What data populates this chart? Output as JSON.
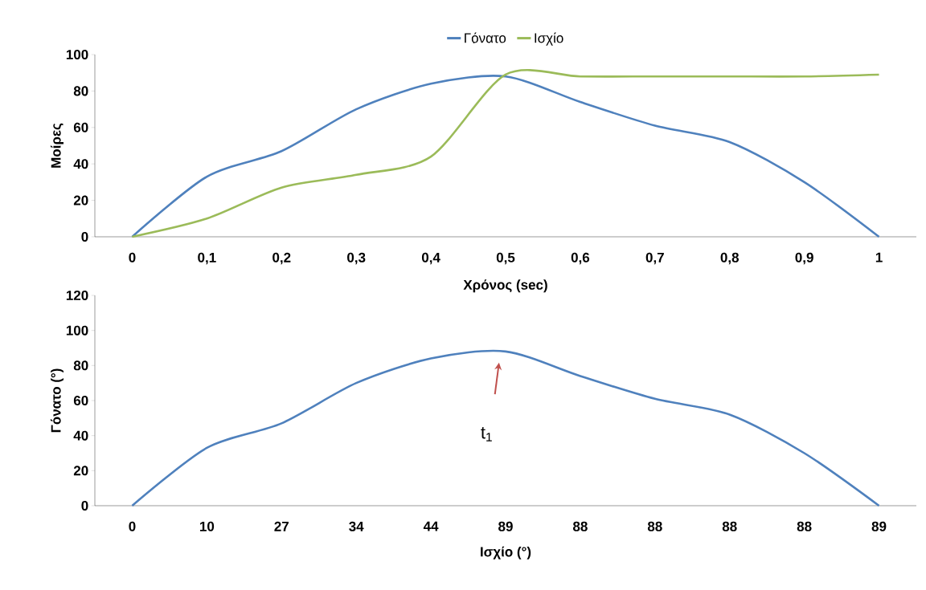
{
  "chart_data": [
    {
      "type": "line",
      "categories": [
        "0",
        "0,1",
        "0,2",
        "0,3",
        "0,4",
        "0,5",
        "0,6",
        "0,7",
        "0,8",
        "0,9",
        "1"
      ],
      "series": [
        {
          "name": "Γόνατο",
          "color": "#4f81bd",
          "values": [
            0,
            33,
            47,
            70,
            84,
            88,
            74,
            61,
            52,
            30,
            0
          ]
        },
        {
          "name": "Ισχίο",
          "color": "#9bbb59",
          "values": [
            0,
            10,
            27,
            34,
            44,
            89,
            88,
            88,
            88,
            88,
            89
          ]
        }
      ],
      "xlabel": "Χρόνος (sec)",
      "ylabel": "Μοίρες",
      "ylim": [
        0,
        100
      ],
      "yticks": [
        0,
        20,
        40,
        60,
        80,
        100
      ],
      "legend": "top"
    },
    {
      "type": "line",
      "categories": [
        "0",
        "10",
        "27",
        "34",
        "44",
        "89",
        "88",
        "88",
        "88",
        "88",
        "89"
      ],
      "series": [
        {
          "color": "#4f81bd",
          "values": [
            0,
            33,
            47,
            70,
            84,
            88,
            74,
            61,
            52,
            30,
            0
          ]
        }
      ],
      "xlabel": "Ισχίο (°)",
      "ylabel": "Γόνατο (°)",
      "ylim": [
        0,
        120
      ],
      "yticks": [
        0,
        20,
        40,
        60,
        80,
        100,
        120
      ],
      "annotations": [
        "t$_{1}$"
      ]
    }
  ]
}
